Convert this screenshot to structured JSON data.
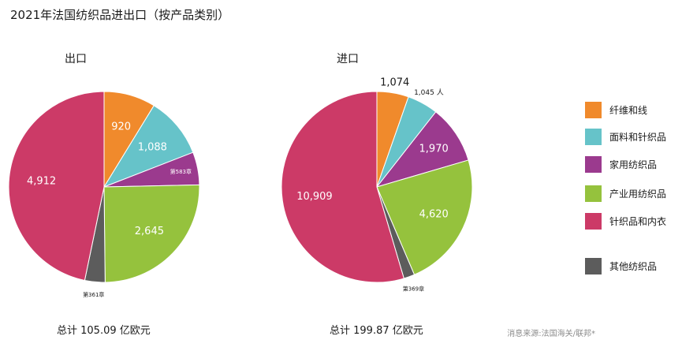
{
  "title": "2021年法国纺织品进出口（按产品类别）",
  "source": "消息来源:法国海关/联邦*",
  "categories": [
    "纤维和线",
    "面料和针织品",
    "家用纺织品",
    "产业用纺织品",
    "针织品和内衣",
    "其他纺织品"
  ],
  "colors": {
    "纤维和线": "#f08a2c",
    "面料和针织品": "#66c3c9",
    "家用纺织品": "#9b3a8e",
    "产业用纺织品": "#95c23d",
    "针织品和内衣": "#cc3a67",
    "其他纺织品": "#5c5c5c"
  },
  "chart_data": [
    {
      "type": "pie",
      "title": "出口",
      "total": "总计 105.09 亿欧元",
      "slices": [
        {
          "category": "纤维和线",
          "value": 920,
          "label": "920"
        },
        {
          "category": "面料和针织品",
          "value": 1088,
          "label": "1,088"
        },
        {
          "category": "家用纺织品",
          "value": 583,
          "label": "第583章"
        },
        {
          "category": "产业用纺织品",
          "value": 2645,
          "label": "2,645"
        },
        {
          "category": "其他纺织品",
          "value": 361,
          "label": "第361章"
        },
        {
          "category": "针织品和内衣",
          "value": 4912,
          "label": "4,912"
        }
      ]
    },
    {
      "type": "pie",
      "title": "进口",
      "total": "总计 199.87 亿欧元",
      "slices": [
        {
          "category": "纤维和线",
          "value": 1074,
          "label": "1,074"
        },
        {
          "category": "面料和针织品",
          "value": 1045,
          "label": "1,045 人"
        },
        {
          "category": "家用纺织品",
          "value": 1970,
          "label": "1,970"
        },
        {
          "category": "产业用纺织品",
          "value": 4620,
          "label": "4,620"
        },
        {
          "category": "其他纺织品",
          "value": 369,
          "label": "第369章"
        },
        {
          "category": "针织品和内衣",
          "value": 10909,
          "label": "10,909"
        }
      ]
    }
  ]
}
